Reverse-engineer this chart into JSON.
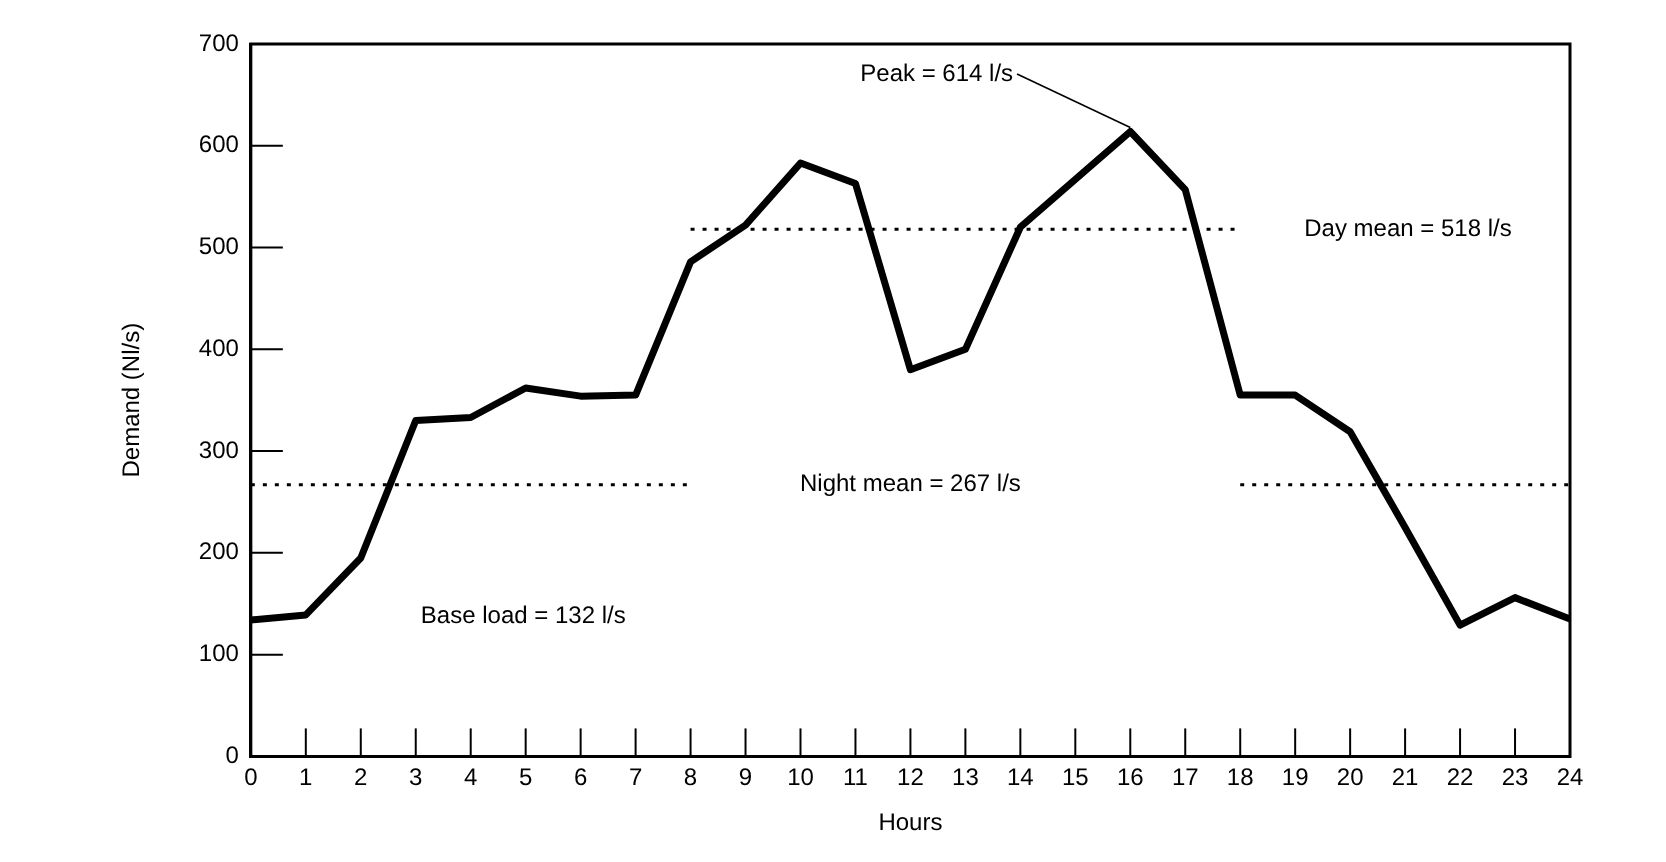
{
  "chart_data": {
    "type": "line",
    "xlabel": "Hours",
    "ylabel": "Demand (Nl/s)",
    "x": [
      0,
      1,
      2,
      3,
      4,
      5,
      6,
      7,
      8,
      9,
      10,
      11,
      12,
      13,
      14,
      15,
      16,
      17,
      18,
      19,
      20,
      21,
      22,
      23,
      24
    ],
    "series": [
      {
        "color": "#000000",
        "values": [
          134,
          139,
          195,
          330,
          333,
          362,
          354,
          355,
          486,
          522,
          583,
          563,
          380,
          400,
          520,
          567,
          614,
          557,
          355,
          355,
          319,
          225,
          129,
          156,
          135
        ]
      },
      {
        "color": "#000000",
        "line_style": "dotted",
        "x": [
          0,
          8,
          13,
          18,
          24
        ],
        "values": [
          267,
          267,
          null,
          267,
          267
        ]
      },
      {
        "color": "#000000",
        "line_style": "dotted",
        "x": [
          8,
          18
        ],
        "values": [
          518,
          518
        ]
      }
    ],
    "annotations": [
      {
        "text": "Peak = 614 l/s",
        "x": 16,
        "y": 614
      },
      {
        "text": "Day mean = 518 l/s",
        "x": 18,
        "y": 518
      },
      "Night mean = 267 l/s",
      "Base load = 132 l/s"
    ],
    "xlim": [
      0,
      24
    ],
    "xticks": [
      0,
      1,
      2,
      3,
      4,
      5,
      6,
      7,
      8,
      9,
      10,
      11,
      12,
      13,
      14,
      15,
      16,
      17,
      18,
      19,
      20,
      21,
      22,
      23,
      24
    ],
    "ylim": [
      0,
      700
    ],
    "yticks": [
      0,
      100,
      200,
      300,
      400,
      500,
      600,
      700
    ],
    "grid": false,
    "legend": false,
    "marker": "none",
    "line_style": "solid"
  }
}
